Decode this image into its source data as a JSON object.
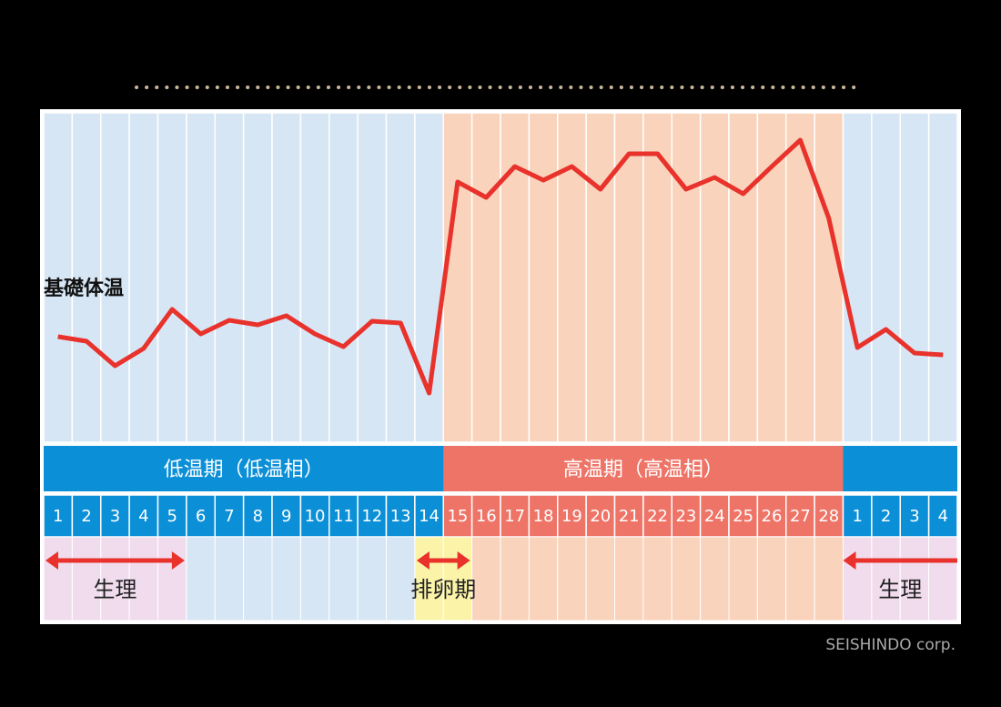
{
  "chart_data": {
    "type": "line",
    "series": [
      {
        "name": "基礎体温",
        "color": "#e8322b",
        "values": [
          110,
          105,
          78,
          97,
          140,
          113,
          128,
          123,
          133,
          113,
          99,
          127,
          125,
          48,
          280,
          263,
          297,
          282,
          297,
          272,
          311,
          311,
          272,
          285,
          267,
          297,
          326,
          240,
          98,
          118,
          92,
          90
        ]
      }
    ],
    "categories": [
      "1",
      "2",
      "3",
      "4",
      "5",
      "6",
      "7",
      "8",
      "9",
      "10",
      "11",
      "12",
      "13",
      "14",
      "15",
      "16",
      "17",
      "18",
      "19",
      "20",
      "21",
      "22",
      "23",
      "24",
      "25",
      "26",
      "27",
      "28",
      "1",
      "2",
      "3",
      "4"
    ],
    "phases": [
      {
        "label": "低温期（低温相）",
        "color": "#0b8fd7"
      },
      {
        "label": "高温期（高温相）",
        "color": "#ee7467"
      }
    ],
    "annotations": [
      "生理",
      "排卵期",
      "生理"
    ],
    "credit": "SEISHINDO corp."
  }
}
